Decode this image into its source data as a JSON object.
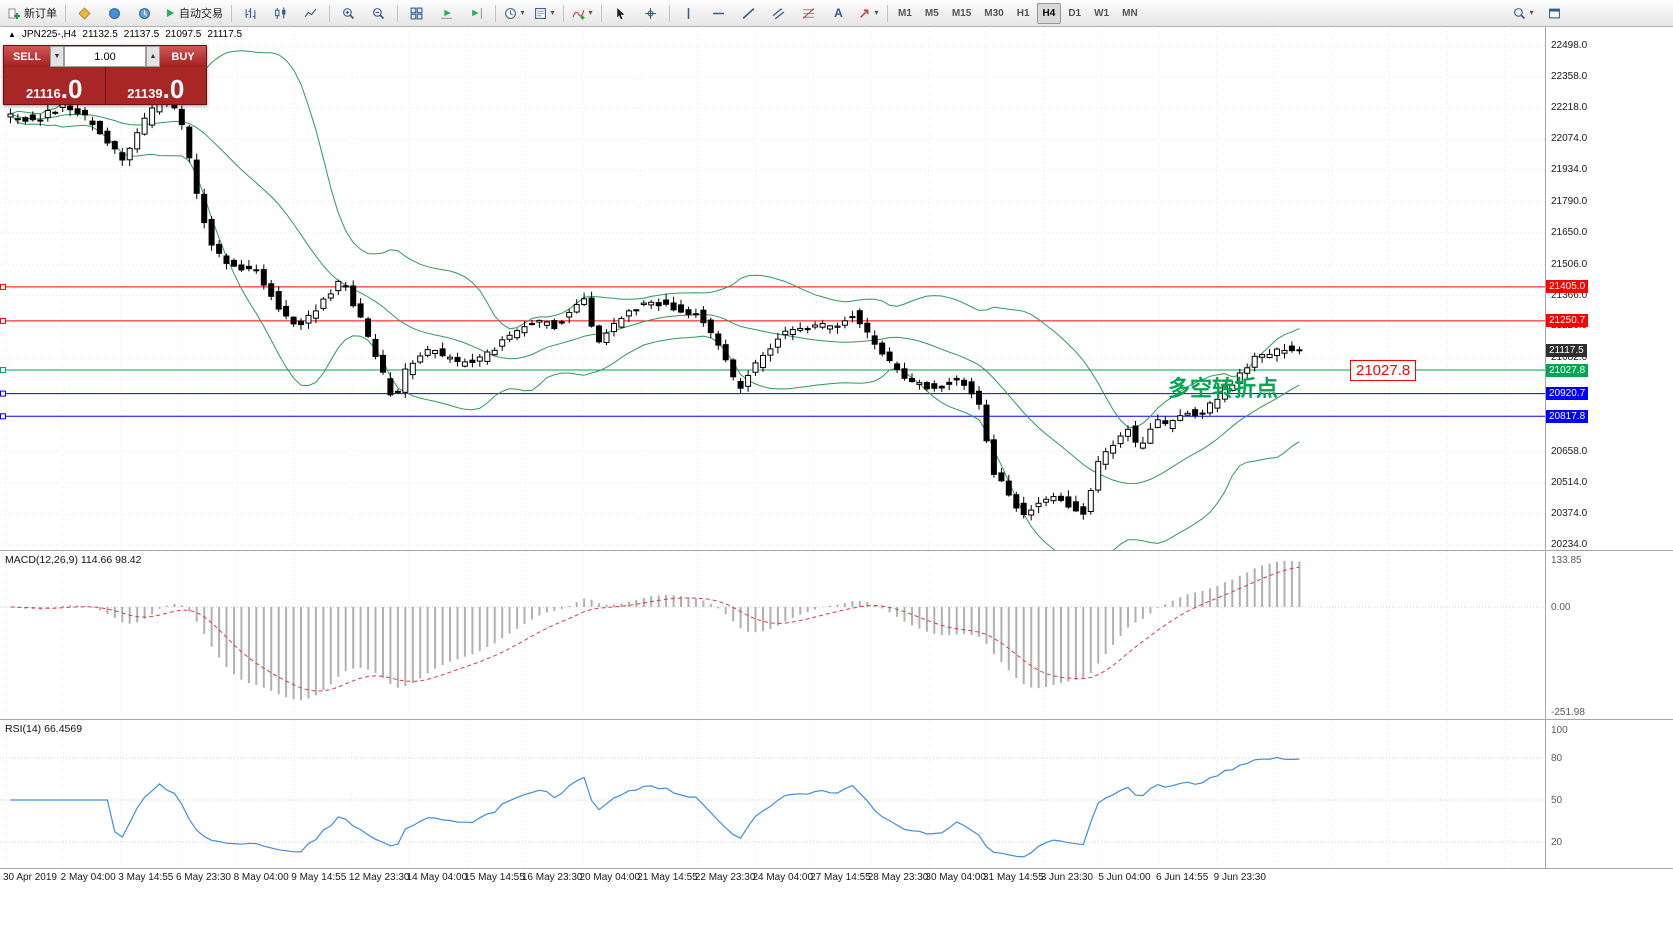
{
  "toolbar": {
    "new_order_label": "新订单",
    "autotrading_label": "自动交易",
    "text_tool_label": "A",
    "timeframes": [
      "M1",
      "M5",
      "M15",
      "M30",
      "H1",
      "H4",
      "D1",
      "W1",
      "MN"
    ],
    "active_timeframe": "H4"
  },
  "icons": {
    "dropdown_caret": "▾",
    "stepper_up": "▲",
    "stepper_down": "▼",
    "symbol_arrow": "▲"
  },
  "symbol_bar": {
    "symbol": "JPN225-,H4",
    "open": "21132.5",
    "high": "21137.5",
    "low": "21097.5",
    "close": "21117.5"
  },
  "trade_panel": {
    "sell_label": "SELL",
    "buy_label": "BUY",
    "volume": "1.00",
    "sell_price_main": "21116",
    "sell_price_frac": ".0",
    "buy_price_main": "21139",
    "buy_price_frac": ".0"
  },
  "chart": {
    "top_price": 22498,
    "bottom_price": 20234,
    "price_axis_ticks": [
      "22498.0",
      "22358.0",
      "22218.0",
      "22074.0",
      "21934.0",
      "21790.0",
      "21650.0",
      "21506.0",
      "21366.0",
      "21226.0",
      "21082.0",
      "20658.0",
      "20514.0",
      "20374.0",
      "20234.0"
    ],
    "grid_prices": [
      22498,
      22358,
      22218,
      22074,
      21934,
      21790,
      21650,
      21506,
      21366,
      21226,
      21082,
      20938,
      20798,
      20658,
      20514,
      20374,
      20234
    ],
    "levels": [
      {
        "price": 21405.0,
        "label": "21405.0",
        "color": "#ff0000"
      },
      {
        "price": 21250.7,
        "label": "21250.7",
        "color": "#ff0000"
      },
      {
        "price": 21027.8,
        "label": "21027.8",
        "color": "#00a651"
      },
      {
        "price": 20920.7,
        "label": "20920.7",
        "color": "#0000ff"
      },
      {
        "price": 20817.8,
        "label": "20817.8",
        "color": "#0000ff"
      }
    ],
    "current_price": {
      "label": "21117.5",
      "bg": "#2f2f2f"
    },
    "annotation": {
      "text": "多空转折点",
      "color": "#00a651"
    },
    "price_callout": {
      "text": "21027.8",
      "color": "#ff0000"
    },
    "colors": {
      "bull": "#ffffff",
      "bear": "#000000",
      "wick": "#000000",
      "bollinger": "#2e9b57"
    },
    "candle_waypoints": [
      [
        8,
        22190
      ],
      [
        40,
        22160
      ],
      [
        70,
        22230
      ],
      [
        100,
        22140
      ],
      [
        128,
        21970
      ],
      [
        145,
        22120
      ],
      [
        166,
        22280
      ],
      [
        185,
        22170
      ],
      [
        205,
        21750
      ],
      [
        220,
        21560
      ],
      [
        240,
        21500
      ],
      [
        262,
        21480
      ],
      [
        285,
        21300
      ],
      [
        305,
        21220
      ],
      [
        325,
        21330
      ],
      [
        348,
        21440
      ],
      [
        368,
        21230
      ],
      [
        383,
        21060
      ],
      [
        398,
        20890
      ],
      [
        413,
        21050
      ],
      [
        438,
        21120
      ],
      [
        462,
        21050
      ],
      [
        487,
        21080
      ],
      [
        512,
        21170
      ],
      [
        538,
        21250
      ],
      [
        562,
        21230
      ],
      [
        588,
        21360
      ],
      [
        603,
        21150
      ],
      [
        628,
        21270
      ],
      [
        652,
        21350
      ],
      [
        678,
        21310
      ],
      [
        700,
        21290
      ],
      [
        723,
        21150
      ],
      [
        743,
        20940
      ],
      [
        763,
        21070
      ],
      [
        788,
        21200
      ],
      [
        813,
        21220
      ],
      [
        838,
        21230
      ],
      [
        860,
        21290
      ],
      [
        878,
        21150
      ],
      [
        898,
        21050
      ],
      [
        918,
        20970
      ],
      [
        942,
        20950
      ],
      [
        963,
        21000
      ],
      [
        983,
        20890
      ],
      [
        998,
        20560
      ],
      [
        1013,
        20470
      ],
      [
        1028,
        20370
      ],
      [
        1043,
        20420
      ],
      [
        1058,
        20470
      ],
      [
        1073,
        20420
      ],
      [
        1088,
        20380
      ],
      [
        1103,
        20600
      ],
      [
        1118,
        20700
      ],
      [
        1133,
        20760
      ],
      [
        1144,
        20650
      ],
      [
        1158,
        20800
      ],
      [
        1173,
        20770
      ],
      [
        1188,
        20850
      ],
      [
        1203,
        20830
      ],
      [
        1218,
        20880
      ],
      [
        1233,
        20960
      ],
      [
        1248,
        21010
      ],
      [
        1260,
        21100
      ],
      [
        1273,
        21080
      ],
      [
        1288,
        21130
      ],
      [
        1300,
        21115
      ]
    ]
  },
  "macd": {
    "name": "MACD(12,26,9)",
    "main_value": "114.66",
    "signal_value": "98.42",
    "axis_max": "133.85",
    "axis_zero": "0.00",
    "axis_min": "-251.98",
    "histogram_color": "#b0b0b0",
    "signal_color": "#e03c3c"
  },
  "rsi": {
    "name": "RSI(14)",
    "value": "66.4569",
    "axis": [
      "100",
      "80",
      "50",
      "20"
    ],
    "axis_values": [
      100,
      80,
      50,
      20
    ],
    "levels": [
      80,
      50,
      20
    ],
    "line_color": "#3d8fe0"
  },
  "date_axis": {
    "labels": [
      "30 Apr 2019",
      "2 May 04:00",
      "3 May 14:55",
      "6 May 23:30",
      "8 May 04:00",
      "9 May 14:55",
      "12 May 23:30",
      "14 May 04:00",
      "15 May 14:55",
      "16 May 23:30",
      "20 May 04:00",
      "21 May 14:55",
      "22 May 23:30",
      "24 May 04:00",
      "27 May 14:55",
      "28 May 23:30",
      "30 May 04:00",
      "31 May 14:55",
      "3 Jun 23:30",
      "5 Jun 04:00",
      "6 Jun 14:55",
      "9 Jun 23:30"
    ]
  }
}
